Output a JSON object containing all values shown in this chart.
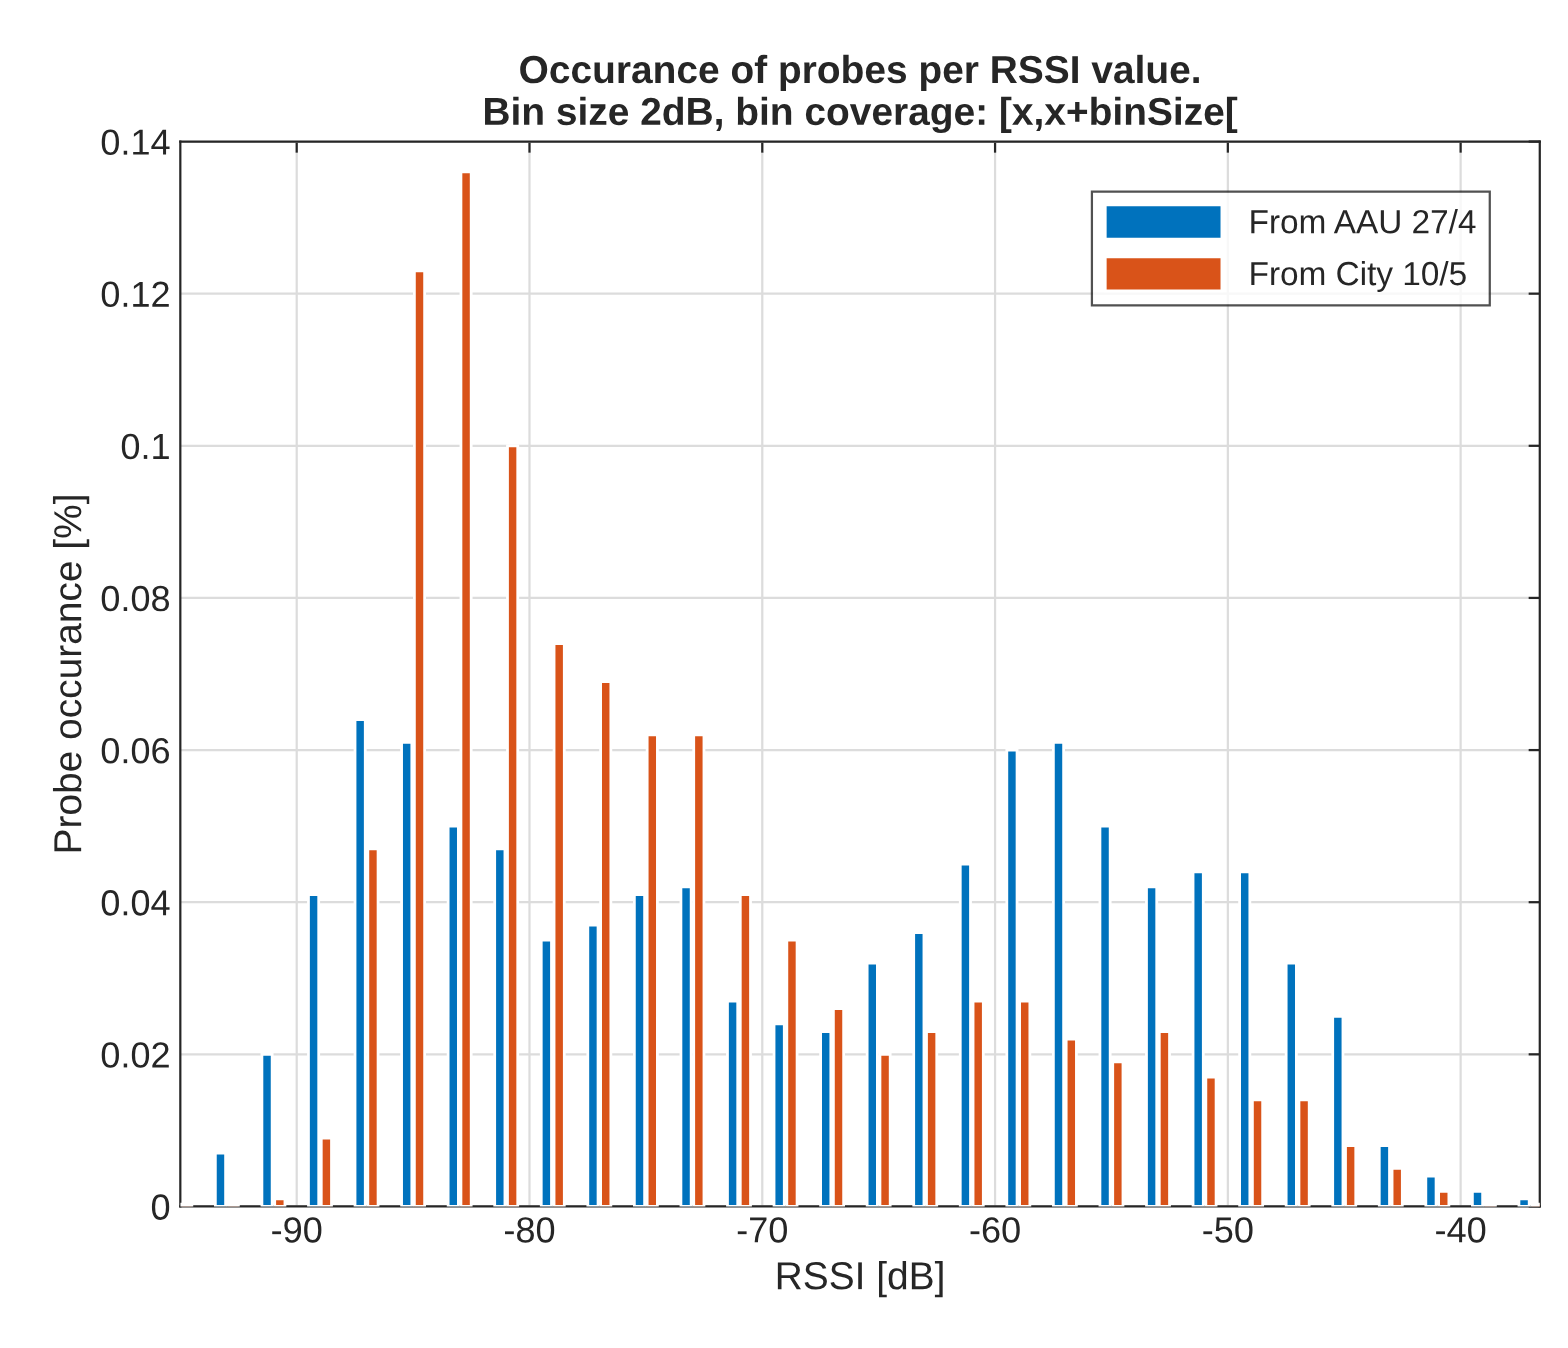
{
  "chart_data": {
    "type": "bar",
    "title": "Occurance of probes per RSSI value.\nBin size 2dB, bin coverage: [x,x+binSize[",
    "xlabel": "RSSI [dB]",
    "ylabel": "Probe occurance [%]",
    "x": [
      -95,
      -93,
      -91,
      -89,
      -87,
      -85,
      -83,
      -81,
      -79,
      -77,
      -75,
      -73,
      -71,
      -69,
      -67,
      -65,
      -63,
      -61,
      -59,
      -57,
      -55,
      -53,
      -51,
      -49,
      -47,
      -45,
      -43,
      -41,
      -39,
      -37
    ],
    "series": [
      {
        "name": "From AAU 27/4",
        "color": "#0072bd",
        "values": [
          null,
          0.007,
          0.02,
          0.041,
          0.064,
          0.061,
          0.05,
          0.047,
          0.035,
          0.037,
          0.041,
          0.042,
          0.027,
          0.024,
          0.023,
          0.032,
          0.036,
          0.045,
          0.06,
          0.061,
          0.05,
          0.042,
          0.044,
          0.044,
          0.032,
          0.025,
          0.008,
          0.004,
          0.002,
          0.001
        ]
      },
      {
        "name": "From City 10/5",
        "color": "#d95319",
        "values": [
          0.0003,
          0.0003,
          0.001,
          0.009,
          0.047,
          0.123,
          0.136,
          0.1,
          0.074,
          0.069,
          0.062,
          0.062,
          0.041,
          0.035,
          0.026,
          0.02,
          0.023,
          0.027,
          0.027,
          0.022,
          0.019,
          0.023,
          0.017,
          0.014,
          0.014,
          0.008,
          0.005,
          0.002,
          0.0003,
          0.0003
        ]
      }
    ],
    "xlim": [
      -95,
      -36.6
    ],
    "xticks": [
      -90,
      -80,
      -70,
      -60,
      -50,
      -40
    ],
    "ylim": [
      0,
      0.14
    ],
    "yticks": [
      0,
      0.02,
      0.04,
      0.06,
      0.08,
      0.1,
      0.12,
      0.14
    ],
    "grid": true,
    "legend": "top right"
  }
}
